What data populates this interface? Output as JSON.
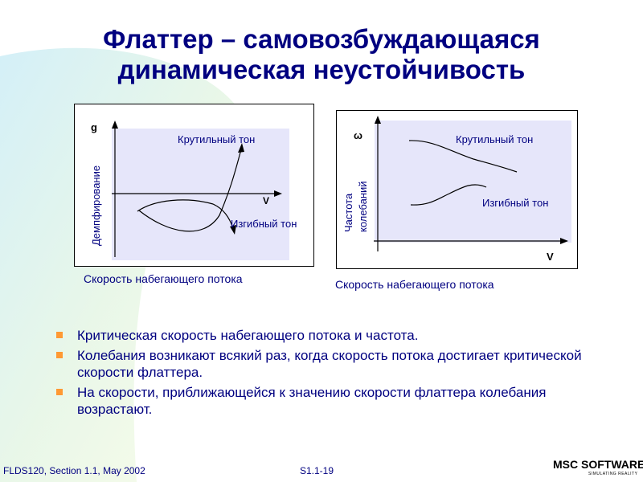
{
  "title": {
    "line1": "Флаттер – самовозбуждающаяся",
    "line2": "динамическая неустойчивость"
  },
  "left_plot": {
    "y_axis_symbol": "g",
    "y_axis_label": "Демпфирование",
    "x_axis_symbol": "V",
    "curve_torsion_label": "Крутильный тон",
    "curve_bending_label": "Изгибный тон",
    "caption": "Скорость набегающего потока"
  },
  "right_plot": {
    "y_axis_symbol": "ω",
    "y_axis_label_line1": "Частота",
    "y_axis_label_line2": "колебаний",
    "x_axis_symbol": "V",
    "curve_torsion_label": "Крутильный тон",
    "curve_bending_label": "Изгибный тон",
    "caption": "Скорость набегающего потока"
  },
  "bullets": [
    "Критическая скорость набегающего потока и частота.",
    "Колебания возникают всякий раз, когда скорость потока достигает критической скорости флаттера.",
    "На скорости, приближающейся к значению скорости флаттера колебания возрастают."
  ],
  "footer": {
    "left": "FLDS120, Section 1.1, May 2002",
    "center": "S1.1-19"
  },
  "logo": {
    "main": "MSC SOFTWARE",
    "sub": "SIMULATING REALITY"
  },
  "colors": {
    "title": "#000080",
    "text": "#000080",
    "bullet": "#ff9933",
    "plot_fill": "#e6e6fa"
  }
}
